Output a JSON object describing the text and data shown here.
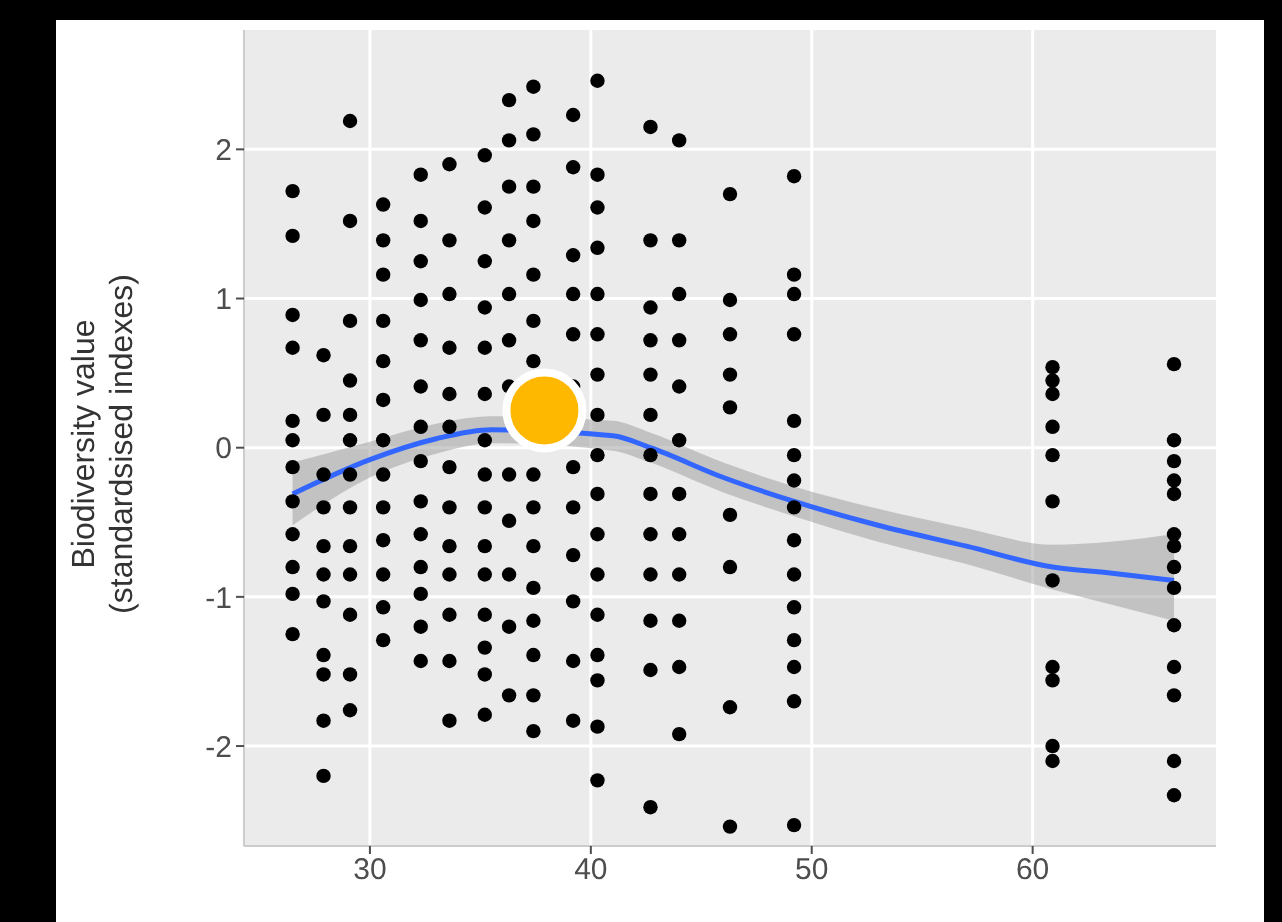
{
  "chart_data": {
    "type": "scatter",
    "ylabel": "Biodiversity value\n(standardsised indexes)",
    "xlim": [
      24.3,
      68.3
    ],
    "xticks": [
      30,
      40,
      50,
      60
    ],
    "ylim": [
      -2.67,
      2.8
    ],
    "yticks": [
      -2,
      -1,
      0,
      1,
      2
    ],
    "grid": true,
    "legend": false,
    "series": [
      {
        "color": "#000000",
        "marker": "circle",
        "x": [
          26.5,
          26.5,
          26.5,
          26.5,
          26.5,
          26.5,
          26.5,
          26.5,
          26.5,
          26.5,
          26.5,
          26.5,
          27.9,
          27.9,
          27.9,
          27.9,
          27.9,
          27.9,
          27.9,
          27.9,
          27.9,
          27.9,
          27.9,
          29.1,
          29.1,
          29.1,
          29.1,
          29.1,
          29.1,
          29.1,
          29.1,
          29.1,
          29.1,
          29.1,
          29.1,
          29.1,
          30.6,
          30.6,
          30.6,
          30.6,
          30.6,
          30.6,
          30.6,
          30.6,
          30.6,
          30.6,
          30.6,
          30.6,
          30.6,
          32.3,
          32.3,
          32.3,
          32.3,
          32.3,
          32.3,
          32.3,
          32.3,
          32.3,
          32.3,
          32.3,
          32.3,
          32.3,
          32.3,
          33.6,
          33.6,
          33.6,
          33.6,
          33.6,
          33.6,
          33.6,
          33.6,
          33.6,
          33.6,
          33.6,
          33.6,
          33.6,
          35.2,
          35.2,
          35.2,
          35.2,
          35.2,
          35.2,
          35.2,
          35.2,
          35.2,
          35.2,
          35.2,
          35.2,
          35.2,
          35.2,
          35.2,
          36.3,
          36.3,
          36.3,
          36.3,
          36.3,
          36.3,
          36.3,
          36.3,
          36.3,
          36.3,
          36.3,
          36.3,
          37.4,
          37.4,
          37.4,
          37.4,
          37.4,
          37.4,
          37.4,
          37.4,
          37.4,
          37.4,
          37.4,
          37.4,
          37.4,
          37.4,
          37.4,
          39.2,
          39.2,
          39.2,
          39.2,
          39.2,
          39.2,
          39.2,
          39.2,
          39.2,
          39.2,
          39.2,
          39.2,
          40.3,
          40.3,
          40.3,
          40.3,
          40.3,
          40.3,
          40.3,
          40.3,
          40.3,
          40.3,
          40.3,
          40.3,
          40.3,
          40.3,
          40.3,
          40.3,
          40.3,
          42.7,
          42.7,
          42.7,
          42.7,
          42.7,
          42.7,
          42.7,
          42.7,
          42.7,
          42.7,
          42.7,
          42.7,
          42.7,
          44.0,
          44.0,
          44.0,
          44.0,
          44.0,
          44.0,
          44.0,
          44.0,
          44.0,
          44.0,
          44.0,
          44.0,
          46.3,
          46.3,
          46.3,
          46.3,
          46.3,
          46.3,
          46.3,
          46.3,
          46.3,
          49.2,
          49.2,
          49.2,
          49.2,
          49.2,
          49.2,
          49.2,
          49.2,
          49.2,
          49.2,
          49.2,
          49.2,
          49.2,
          49.2,
          49.2,
          60.9,
          60.9,
          60.9,
          60.9,
          60.9,
          60.9,
          60.9,
          60.9,
          60.9,
          60.9,
          60.9,
          66.4,
          66.4,
          66.4,
          66.4,
          66.4,
          66.4,
          66.4,
          66.4,
          66.4,
          66.4,
          66.4,
          66.4,
          66.4,
          66.4
        ],
        "values": [
          1.72,
          1.42,
          0.89,
          0.67,
          0.18,
          0.05,
          -0.13,
          -0.36,
          -0.58,
          -0.8,
          -0.98,
          -1.25,
          0.62,
          0.22,
          -0.18,
          -0.4,
          -0.66,
          -0.85,
          -1.03,
          -1.39,
          -1.52,
          -1.83,
          -2.2,
          2.19,
          1.52,
          0.85,
          0.45,
          0.22,
          0.05,
          -0.18,
          -0.4,
          -0.66,
          -0.85,
          -1.12,
          -1.52,
          -1.76,
          1.63,
          1.39,
          1.16,
          0.85,
          0.58,
          0.32,
          0.05,
          -0.18,
          -0.4,
          -0.62,
          -0.85,
          -1.07,
          -1.29,
          1.83,
          1.52,
          1.25,
          0.99,
          0.72,
          0.41,
          0.14,
          -0.09,
          -0.36,
          -0.58,
          -0.8,
          -0.98,
          -1.2,
          -1.43,
          1.9,
          1.39,
          1.03,
          0.67,
          0.36,
          0.14,
          -0.13,
          -0.4,
          -0.66,
          -0.85,
          -1.12,
          -1.43,
          -1.83,
          1.96,
          1.61,
          1.25,
          0.94,
          0.67,
          0.36,
          0.05,
          -0.18,
          -0.4,
          -0.66,
          -0.85,
          -1.12,
          -1.34,
          -1.52,
          -1.79,
          2.33,
          2.06,
          1.75,
          1.39,
          1.03,
          0.72,
          0.41,
          -0.18,
          -0.49,
          -0.85,
          -1.2,
          -1.66,
          2.42,
          2.1,
          1.75,
          1.52,
          1.16,
          0.85,
          0.58,
          -0.18,
          -0.4,
          -0.66,
          -0.94,
          -1.16,
          -1.39,
          -1.66,
          -1.9,
          2.23,
          1.88,
          1.29,
          1.03,
          0.76,
          0.41,
          -0.13,
          -0.4,
          -0.72,
          -1.03,
          -1.43,
          -1.83,
          2.46,
          1.83,
          1.61,
          1.34,
          1.03,
          0.76,
          0.49,
          0.22,
          -0.05,
          -0.31,
          -0.58,
          -0.85,
          -1.12,
          -1.39,
          -1.56,
          -1.87,
          -2.23,
          2.15,
          1.39,
          0.94,
          0.72,
          0.49,
          0.22,
          -0.05,
          -0.31,
          -0.58,
          -0.85,
          -1.16,
          -1.49,
          -2.41,
          2.06,
          1.39,
          1.03,
          0.72,
          0.41,
          0.05,
          -0.31,
          -0.58,
          -0.85,
          -1.16,
          -1.47,
          -1.92,
          1.7,
          0.99,
          0.76,
          0.49,
          0.27,
          -0.45,
          -0.8,
          -1.74,
          -2.54,
          1.82,
          1.16,
          1.03,
          0.76,
          0.18,
          -0.05,
          -0.22,
          -0.4,
          -0.62,
          -0.85,
          -1.07,
          -1.29,
          -1.47,
          -1.7,
          -2.53,
          0.54,
          0.45,
          0.36,
          0.14,
          -0.05,
          -0.36,
          -0.89,
          -1.47,
          -1.56,
          -2.0,
          -2.1,
          0.56,
          0.05,
          -0.09,
          -0.22,
          -0.31,
          -0.58,
          -0.66,
          -0.8,
          -0.94,
          -1.19,
          -1.47,
          -1.66,
          -2.1,
          -2.33
        ]
      },
      {
        "type": "line",
        "color": "#3366ff",
        "marker": "none",
        "x": [
          26.5,
          30,
          33,
          35.5,
          41,
          42.7,
          46,
          49.2,
          53,
          57,
          60.9,
          63.5,
          66.4
        ],
        "values": [
          -0.31,
          -0.08,
          0.06,
          0.12,
          0.08,
          0.0,
          -0.2,
          -0.36,
          -0.52,
          -0.66,
          -0.8,
          -0.84,
          -0.89
        ],
        "lower": [
          -0.52,
          -0.2,
          -0.04,
          0.03,
          -0.02,
          -0.1,
          -0.3,
          -0.46,
          -0.63,
          -0.78,
          -0.95,
          -1.05,
          -1.16
        ],
        "upper": [
          -0.1,
          0.04,
          0.16,
          0.21,
          0.18,
          0.1,
          -0.1,
          -0.26,
          -0.41,
          -0.54,
          -0.65,
          -0.63,
          -0.58
        ]
      },
      {
        "color": "#ffb800",
        "marker": "circle",
        "x": [
          37.9
        ],
        "values": [
          0.25
        ]
      }
    ]
  }
}
